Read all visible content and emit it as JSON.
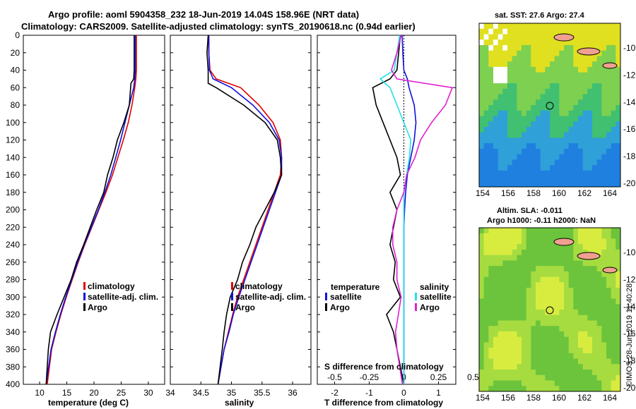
{
  "header": {
    "line1": "Argo profile: aoml 5904358_232 18-Jun-2019 14.04S 158.96E (NRT data)",
    "line2": "Climatology: CARS2009. Satellite-adjusted climatology: synTS_20190618.nc (0.94d earlier)"
  },
  "colors": {
    "argo": "#000000",
    "climatology": "#e00000",
    "satellite": "#1010e0",
    "sat_salinity": "#22e0e8",
    "clim_salinity": "#e020d0"
  },
  "depth_axis": {
    "ticks": [
      "0",
      "20",
      "40",
      "60",
      "80",
      "100",
      "120",
      "140",
      "160",
      "180",
      "200",
      "220",
      "240",
      "260",
      "280",
      "300",
      "320",
      "340",
      "360",
      "380",
      "400"
    ]
  },
  "legend_ts": {
    "clim": "climatology",
    "sat": "satellite-adj. clim.",
    "argo": "Argo"
  },
  "legend_diff": {
    "temp_title": "temperature",
    "sal_title": "salinity",
    "sat": "satellite",
    "argo": "Argo",
    "s_title": "S difference from climatology"
  },
  "timestamp": "©IMOS 28-Jun-2019 11:40:28",
  "maps": {
    "sst_title": "sat. SST: 27.6 Argo: 27.4",
    "sla_title1": "Altim. SLA: -0.011",
    "sla_title2": "Argo h1000: -0.11 h2000: NaN",
    "lon_ticks": [
      "154",
      "156",
      "158",
      "160",
      "162",
      "164"
    ],
    "lat_ticks": [
      "-10",
      "-12",
      "-14",
      "-16",
      "-18",
      "-20"
    ]
  },
  "chart_data": [
    {
      "type": "line",
      "title": "temperature",
      "xlabel": "temperature (deg C)",
      "ylabel": "depth",
      "xlim": [
        7,
        33
      ],
      "ylim": [
        400,
        0
      ],
      "xticks": [
        "10",
        "15",
        "20",
        "25",
        "30"
      ],
      "series": [
        {
          "name": "climatology",
          "x": [
            27.8,
            27.8,
            27.8,
            27.7,
            27.5,
            27.0,
            26.3,
            25.4,
            24.4,
            23.4,
            22.2,
            20.9,
            19.6,
            18.3,
            17.1,
            16.0,
            14.9,
            13.9,
            13.0,
            12.2,
            11.4
          ],
          "y": [
            0,
            20,
            40,
            50,
            60,
            80,
            100,
            120,
            140,
            160,
            180,
            200,
            220,
            240,
            260,
            280,
            300,
            320,
            340,
            360,
            400
          ]
        },
        {
          "name": "satellite-adj. clim.",
          "x": [
            27.6,
            27.6,
            27.6,
            27.5,
            27.3,
            26.5,
            25.7,
            24.9,
            24.0,
            23.1,
            22.0,
            20.8,
            19.5,
            18.2,
            17.0,
            15.9,
            14.8,
            13.8,
            12.9,
            12.1,
            11.2
          ],
          "y": [
            0,
            20,
            40,
            50,
            60,
            80,
            100,
            120,
            140,
            160,
            180,
            200,
            220,
            240,
            260,
            280,
            300,
            320,
            340,
            360,
            400
          ]
        },
        {
          "name": "Argo",
          "x": [
            27.4,
            27.4,
            27.4,
            27.3,
            26.8,
            26.5,
            25.5,
            24.3,
            23.5,
            22.5,
            21.8,
            20.5,
            19.3,
            18.1,
            16.8,
            15.8,
            14.5,
            13.2,
            12.0,
            11.6,
            11.2
          ],
          "y": [
            0,
            20,
            40,
            50,
            55,
            80,
            100,
            120,
            140,
            160,
            180,
            200,
            220,
            240,
            260,
            280,
            300,
            320,
            340,
            360,
            400
          ]
        }
      ]
    },
    {
      "type": "line",
      "title": "salinity",
      "xlabel": "salinity",
      "ylabel": "depth",
      "xlim": [
        34,
        36.3
      ],
      "ylim": [
        400,
        0
      ],
      "xticks": [
        "34",
        "34.5",
        "35",
        "35.5",
        "36"
      ],
      "series": [
        {
          "name": "climatology",
          "x": [
            34.63,
            34.63,
            34.65,
            34.75,
            35.15,
            35.45,
            35.68,
            35.8,
            35.82,
            35.8,
            35.7,
            35.6,
            35.5,
            35.4,
            35.3,
            35.2,
            35.1,
            35.02,
            34.95,
            34.88,
            34.78
          ],
          "y": [
            0,
            20,
            40,
            50,
            60,
            80,
            100,
            120,
            140,
            160,
            180,
            200,
            220,
            240,
            260,
            280,
            300,
            320,
            340,
            360,
            400
          ]
        },
        {
          "name": "satellite-adj. clim.",
          "x": [
            34.63,
            34.63,
            34.64,
            34.7,
            35.0,
            35.35,
            35.62,
            35.78,
            35.82,
            35.82,
            35.72,
            35.62,
            35.52,
            35.42,
            35.32,
            35.22,
            35.12,
            35.03,
            34.96,
            34.88,
            34.78
          ],
          "y": [
            0,
            20,
            40,
            50,
            60,
            80,
            100,
            120,
            140,
            160,
            180,
            200,
            220,
            240,
            260,
            280,
            300,
            320,
            340,
            360,
            400
          ]
        },
        {
          "name": "Argo",
          "x": [
            34.62,
            34.6,
            34.62,
            34.62,
            34.75,
            35.2,
            35.55,
            35.75,
            35.8,
            35.82,
            35.7,
            35.55,
            35.4,
            35.3,
            35.18,
            35.1,
            34.98,
            34.92,
            34.88,
            34.85,
            34.78
          ],
          "y": [
            0,
            20,
            40,
            55,
            60,
            80,
            100,
            120,
            140,
            160,
            180,
            200,
            220,
            240,
            260,
            280,
            300,
            320,
            340,
            360,
            400
          ]
        }
      ]
    },
    {
      "type": "line",
      "title": "difference from climatology",
      "xlabel": "T difference from climatology",
      "ylabel": "depth",
      "xlim": [
        -2.5,
        1.5
      ],
      "ylim": [
        400,
        0
      ],
      "xticks": [
        "-2",
        "-1",
        "0",
        "1"
      ],
      "s_xticks": [
        "-0.5",
        "-0.25",
        "0",
        "0.25",
        "0.5"
      ],
      "series": [
        {
          "name": "T satellite",
          "x": [
            -0.05,
            -0.03,
            0,
            0.1,
            0.15,
            0.3,
            0.35,
            0.3,
            0.2,
            0.1,
            0.05,
            0.02,
            0,
            0,
            0,
            0,
            0,
            0,
            0,
            0,
            0
          ],
          "y": [
            0,
            20,
            40,
            50,
            60,
            80,
            100,
            120,
            140,
            160,
            180,
            200,
            220,
            240,
            260,
            280,
            300,
            320,
            340,
            360,
            400
          ]
        },
        {
          "name": "T Argo",
          "x": [
            -0.1,
            -0.15,
            -0.2,
            -0.4,
            -0.9,
            -0.8,
            -0.6,
            -0.4,
            -0.2,
            -0.1,
            -0.4,
            -0.2,
            -0.3,
            -0.4,
            -0.25,
            -0.3,
            -0.1,
            -0.5,
            -0.3,
            -0.2,
            0
          ],
          "y": [
            0,
            20,
            40,
            50,
            60,
            80,
            100,
            120,
            140,
            160,
            180,
            200,
            220,
            240,
            260,
            280,
            300,
            320,
            340,
            360,
            400
          ]
        },
        {
          "name": "S satellite",
          "x": [
            -0.03,
            -0.05,
            -0.07,
            -0.17,
            -0.1,
            -0.05,
            0,
            0.05,
            0.04,
            0.02,
            0,
            0,
            0,
            0,
            0,
            0,
            0,
            0,
            0,
            0,
            0
          ],
          "y": [
            0,
            20,
            40,
            50,
            60,
            80,
            100,
            120,
            140,
            160,
            180,
            200,
            220,
            240,
            260,
            280,
            300,
            320,
            340,
            360,
            400
          ]
        },
        {
          "name": "S Argo",
          "x": [
            -0.02,
            -0.05,
            -0.09,
            -0.05,
            0.35,
            0.3,
            0.2,
            0.12,
            0.08,
            0.02,
            0,
            -0.05,
            -0.08,
            -0.08,
            -0.05,
            -0.05,
            -0.02,
            -0.04,
            -0.06,
            -0.05,
            -0.01
          ],
          "y": [
            0,
            20,
            40,
            50,
            60,
            80,
            100,
            120,
            140,
            160,
            180,
            200,
            220,
            240,
            260,
            280,
            300,
            320,
            340,
            360,
            400
          ]
        }
      ]
    }
  ]
}
